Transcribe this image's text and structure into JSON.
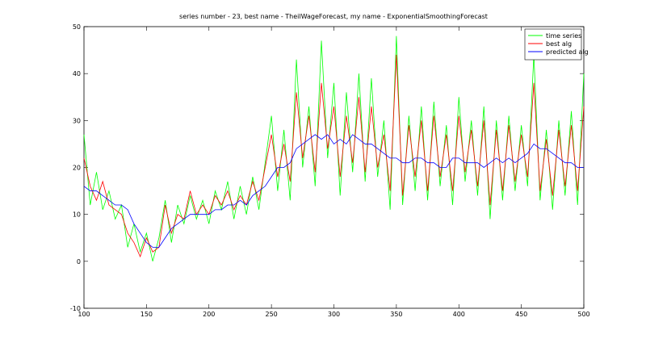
{
  "chart_data": {
    "type": "line",
    "title": "series number - 23, best name - TheilWageForecast, my name - ExponentialSmoothingForecast",
    "x": [
      100,
      105,
      110,
      115,
      120,
      125,
      130,
      135,
      140,
      145,
      150,
      155,
      160,
      165,
      170,
      175,
      180,
      185,
      190,
      195,
      200,
      205,
      210,
      215,
      220,
      225,
      230,
      235,
      240,
      245,
      250,
      255,
      260,
      265,
      270,
      275,
      280,
      285,
      290,
      295,
      300,
      305,
      310,
      315,
      320,
      325,
      330,
      335,
      340,
      345,
      350,
      355,
      360,
      365,
      370,
      375,
      380,
      385,
      390,
      395,
      400,
      405,
      410,
      415,
      420,
      425,
      430,
      435,
      440,
      445,
      450,
      455,
      460,
      465,
      470,
      475,
      480,
      485,
      490,
      495,
      500
    ],
    "series": [
      {
        "name": "time series",
        "color": "#00ff00",
        "values": [
          27,
          12,
          19,
          11,
          15,
          9,
          12,
          3,
          8,
          2,
          6,
          0,
          5,
          13,
          4,
          12,
          8,
          14,
          9,
          13,
          8,
          15,
          11,
          17,
          9,
          16,
          10,
          18,
          11,
          21,
          31,
          15,
          28,
          13,
          43,
          20,
          33,
          16,
          47,
          22,
          38,
          14,
          36,
          19,
          40,
          17,
          39,
          18,
          30,
          11,
          48,
          12,
          31,
          15,
          33,
          13,
          34,
          16,
          29,
          12,
          35,
          17,
          30,
          14,
          33,
          9,
          30,
          13,
          31,
          15,
          29,
          16,
          44,
          13,
          28,
          11,
          30,
          14,
          32,
          12,
          40
        ]
      },
      {
        "name": "best alg",
        "color": "#ff0000",
        "values": [
          22,
          16,
          13,
          17,
          12,
          11,
          10,
          6,
          4,
          1,
          5,
          2,
          3,
          12,
          6,
          10,
          9,
          15,
          10,
          12,
          10,
          14,
          12,
          15,
          11,
          14,
          12,
          17,
          13,
          20,
          27,
          18,
          25,
          17,
          36,
          22,
          31,
          19,
          38,
          24,
          33,
          18,
          31,
          21,
          35,
          19,
          33,
          20,
          27,
          15,
          44,
          14,
          29,
          18,
          30,
          15,
          31,
          18,
          27,
          15,
          31,
          19,
          28,
          16,
          30,
          12,
          28,
          15,
          29,
          17,
          27,
          18,
          38,
          15,
          26,
          14,
          28,
          16,
          29,
          15,
          33
        ]
      },
      {
        "name": "predicted alg",
        "color": "#0000ff",
        "values": [
          16,
          15,
          15,
          14,
          13,
          12,
          12,
          11,
          8,
          6,
          4,
          3,
          3,
          5,
          7,
          8,
          9,
          10,
          10,
          10,
          10,
          11,
          11,
          12,
          12,
          13,
          12,
          14,
          15,
          16,
          18,
          20,
          20,
          21,
          24,
          25,
          26,
          27,
          26,
          27,
          25,
          26,
          25,
          27,
          26,
          25,
          25,
          24,
          23,
          22,
          22,
          21,
          21,
          22,
          22,
          21,
          21,
          20,
          20,
          22,
          22,
          21,
          21,
          21,
          20,
          21,
          22,
          21,
          22,
          21,
          22,
          23,
          25,
          24,
          24,
          23,
          22,
          21,
          21,
          20,
          20
        ]
      }
    ],
    "xlim": [
      100,
      500
    ],
    "xticks": [
      100,
      150,
      200,
      250,
      300,
      350,
      400,
      450,
      500
    ],
    "ylim": [
      -10,
      50
    ],
    "yticks": [
      -10,
      0,
      10,
      20,
      30,
      40,
      50
    ],
    "legend": "upper right"
  }
}
